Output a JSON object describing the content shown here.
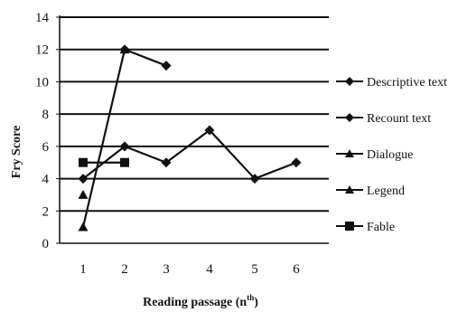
{
  "chart_data": {
    "type": "line",
    "title": "",
    "xlabel": "Reading passage (n",
    "xlabel_sup": "th",
    "xlabel_close": ")",
    "ylabel": "Fry  Score",
    "x": [
      1,
      2,
      3,
      4,
      5,
      6
    ],
    "x_tick_labels": [
      "1",
      "2",
      "3",
      "4",
      "5",
      "6"
    ],
    "ylim": [
      0,
      14
    ],
    "y_ticks": [
      0,
      2,
      4,
      6,
      8,
      10,
      12,
      14
    ],
    "y_tick_labels": [
      "0",
      "2",
      "4",
      "6",
      "8",
      "10",
      "12",
      "14"
    ],
    "grid": "horizontal",
    "legend_position": "right",
    "series": [
      {
        "name": "Descriptive text",
        "marker": "diamond",
        "points": [
          [
            2,
            12
          ],
          [
            3,
            11
          ]
        ]
      },
      {
        "name": "Recount text",
        "marker": "diamond",
        "points": [
          [
            1,
            4
          ],
          [
            2,
            6
          ],
          [
            3,
            5
          ],
          [
            4,
            7
          ],
          [
            5,
            4
          ],
          [
            6,
            5
          ]
        ]
      },
      {
        "name": "Dialogue",
        "marker": "triangle",
        "points": [
          [
            1,
            3
          ]
        ]
      },
      {
        "name": "Legend",
        "marker": "triangle",
        "points": [
          [
            1,
            1
          ],
          [
            2,
            12
          ]
        ]
      },
      {
        "name": "Fable",
        "marker": "square",
        "points": [
          [
            1,
            5
          ],
          [
            2,
            5
          ]
        ]
      }
    ]
  }
}
